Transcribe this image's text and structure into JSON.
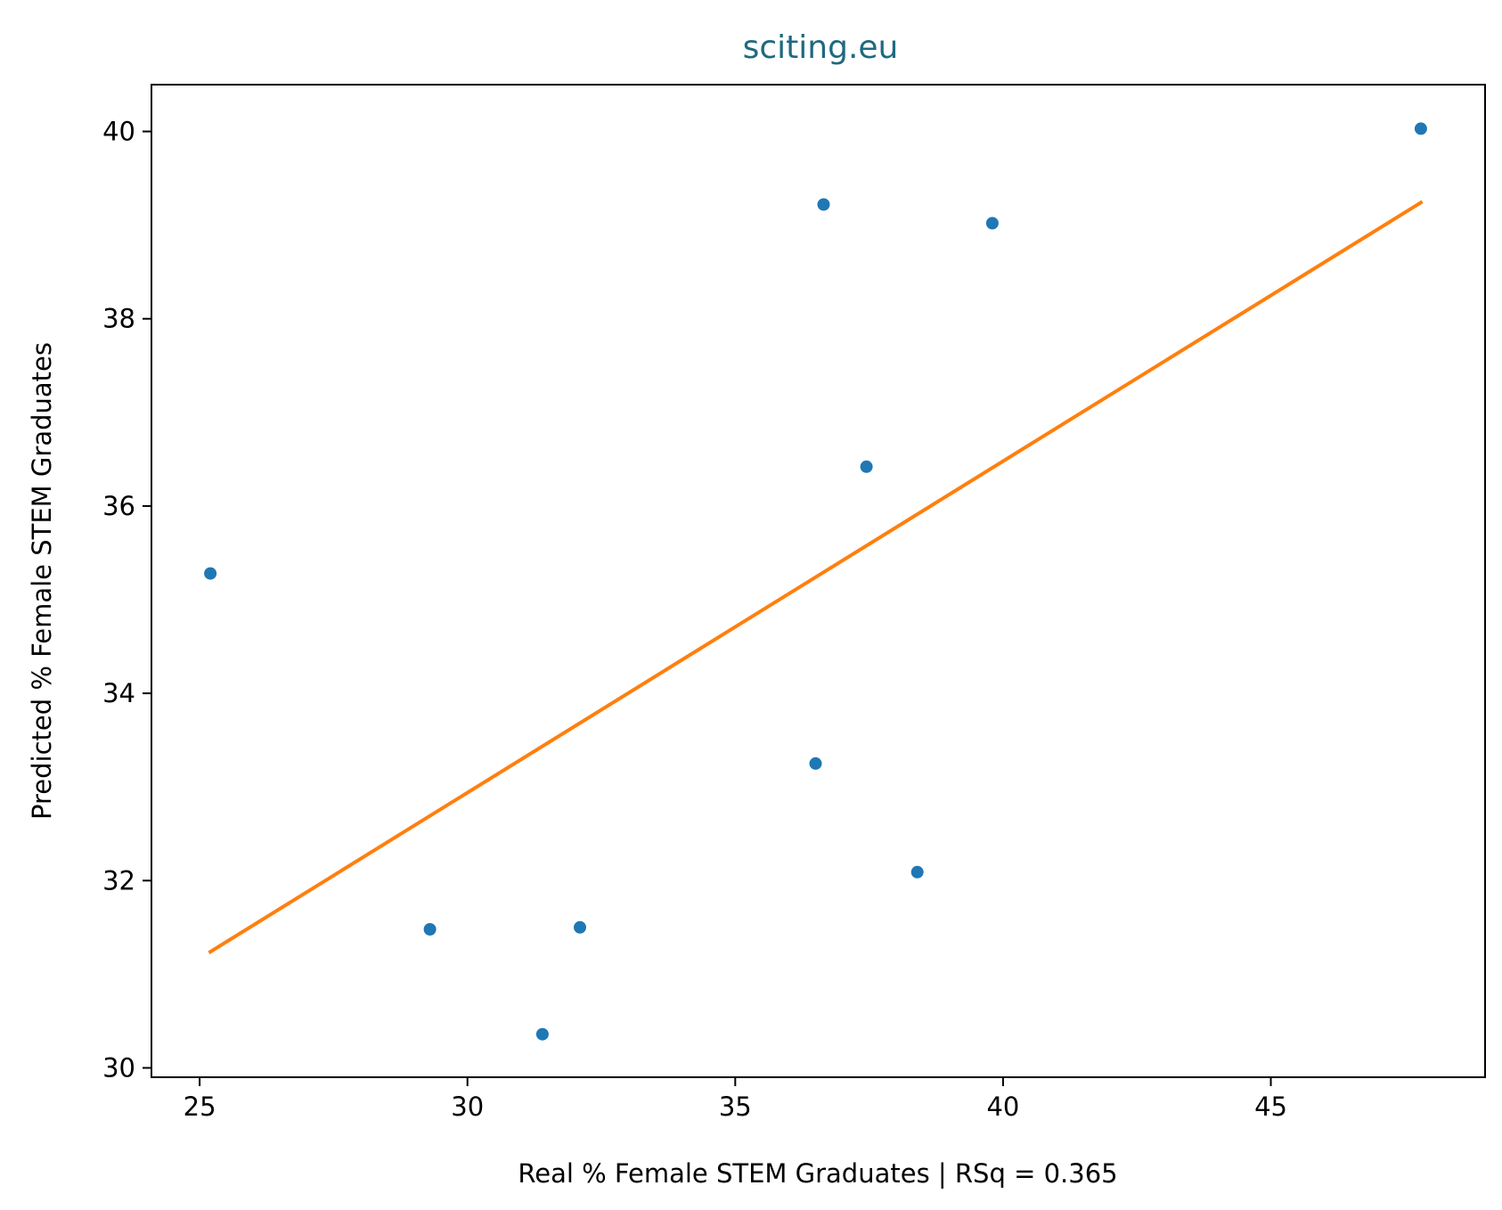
{
  "chart_data": {
    "type": "scatter",
    "title": "sciting.eu",
    "xlabel": "Real % Female STEM Graduates | RSq = 0.365",
    "ylabel": "Predicted % Female STEM Graduates",
    "xlim": [
      24.1,
      49.0
    ],
    "ylim": [
      29.9,
      40.5
    ],
    "xticks": [
      25,
      30,
      35,
      40,
      45
    ],
    "yticks": [
      30,
      32,
      34,
      36,
      38,
      40
    ],
    "grid": false,
    "legend": "none",
    "series": [
      {
        "type": "scatter",
        "x": [
          25.2,
          29.3,
          31.4,
          32.1,
          36.5,
          36.65,
          37.45,
          38.4,
          39.8,
          47.8
        ],
        "y": [
          35.28,
          31.48,
          30.36,
          31.5,
          33.25,
          39.22,
          36.42,
          32.09,
          39.02,
          40.03
        ],
        "color": "#1f77b4"
      },
      {
        "type": "line",
        "x": [
          25.2,
          47.8
        ],
        "y": [
          31.24,
          39.24
        ],
        "color": "#ff7f0e"
      }
    ],
    "title_color": "#1f6980",
    "axis_color": "#000000"
  }
}
